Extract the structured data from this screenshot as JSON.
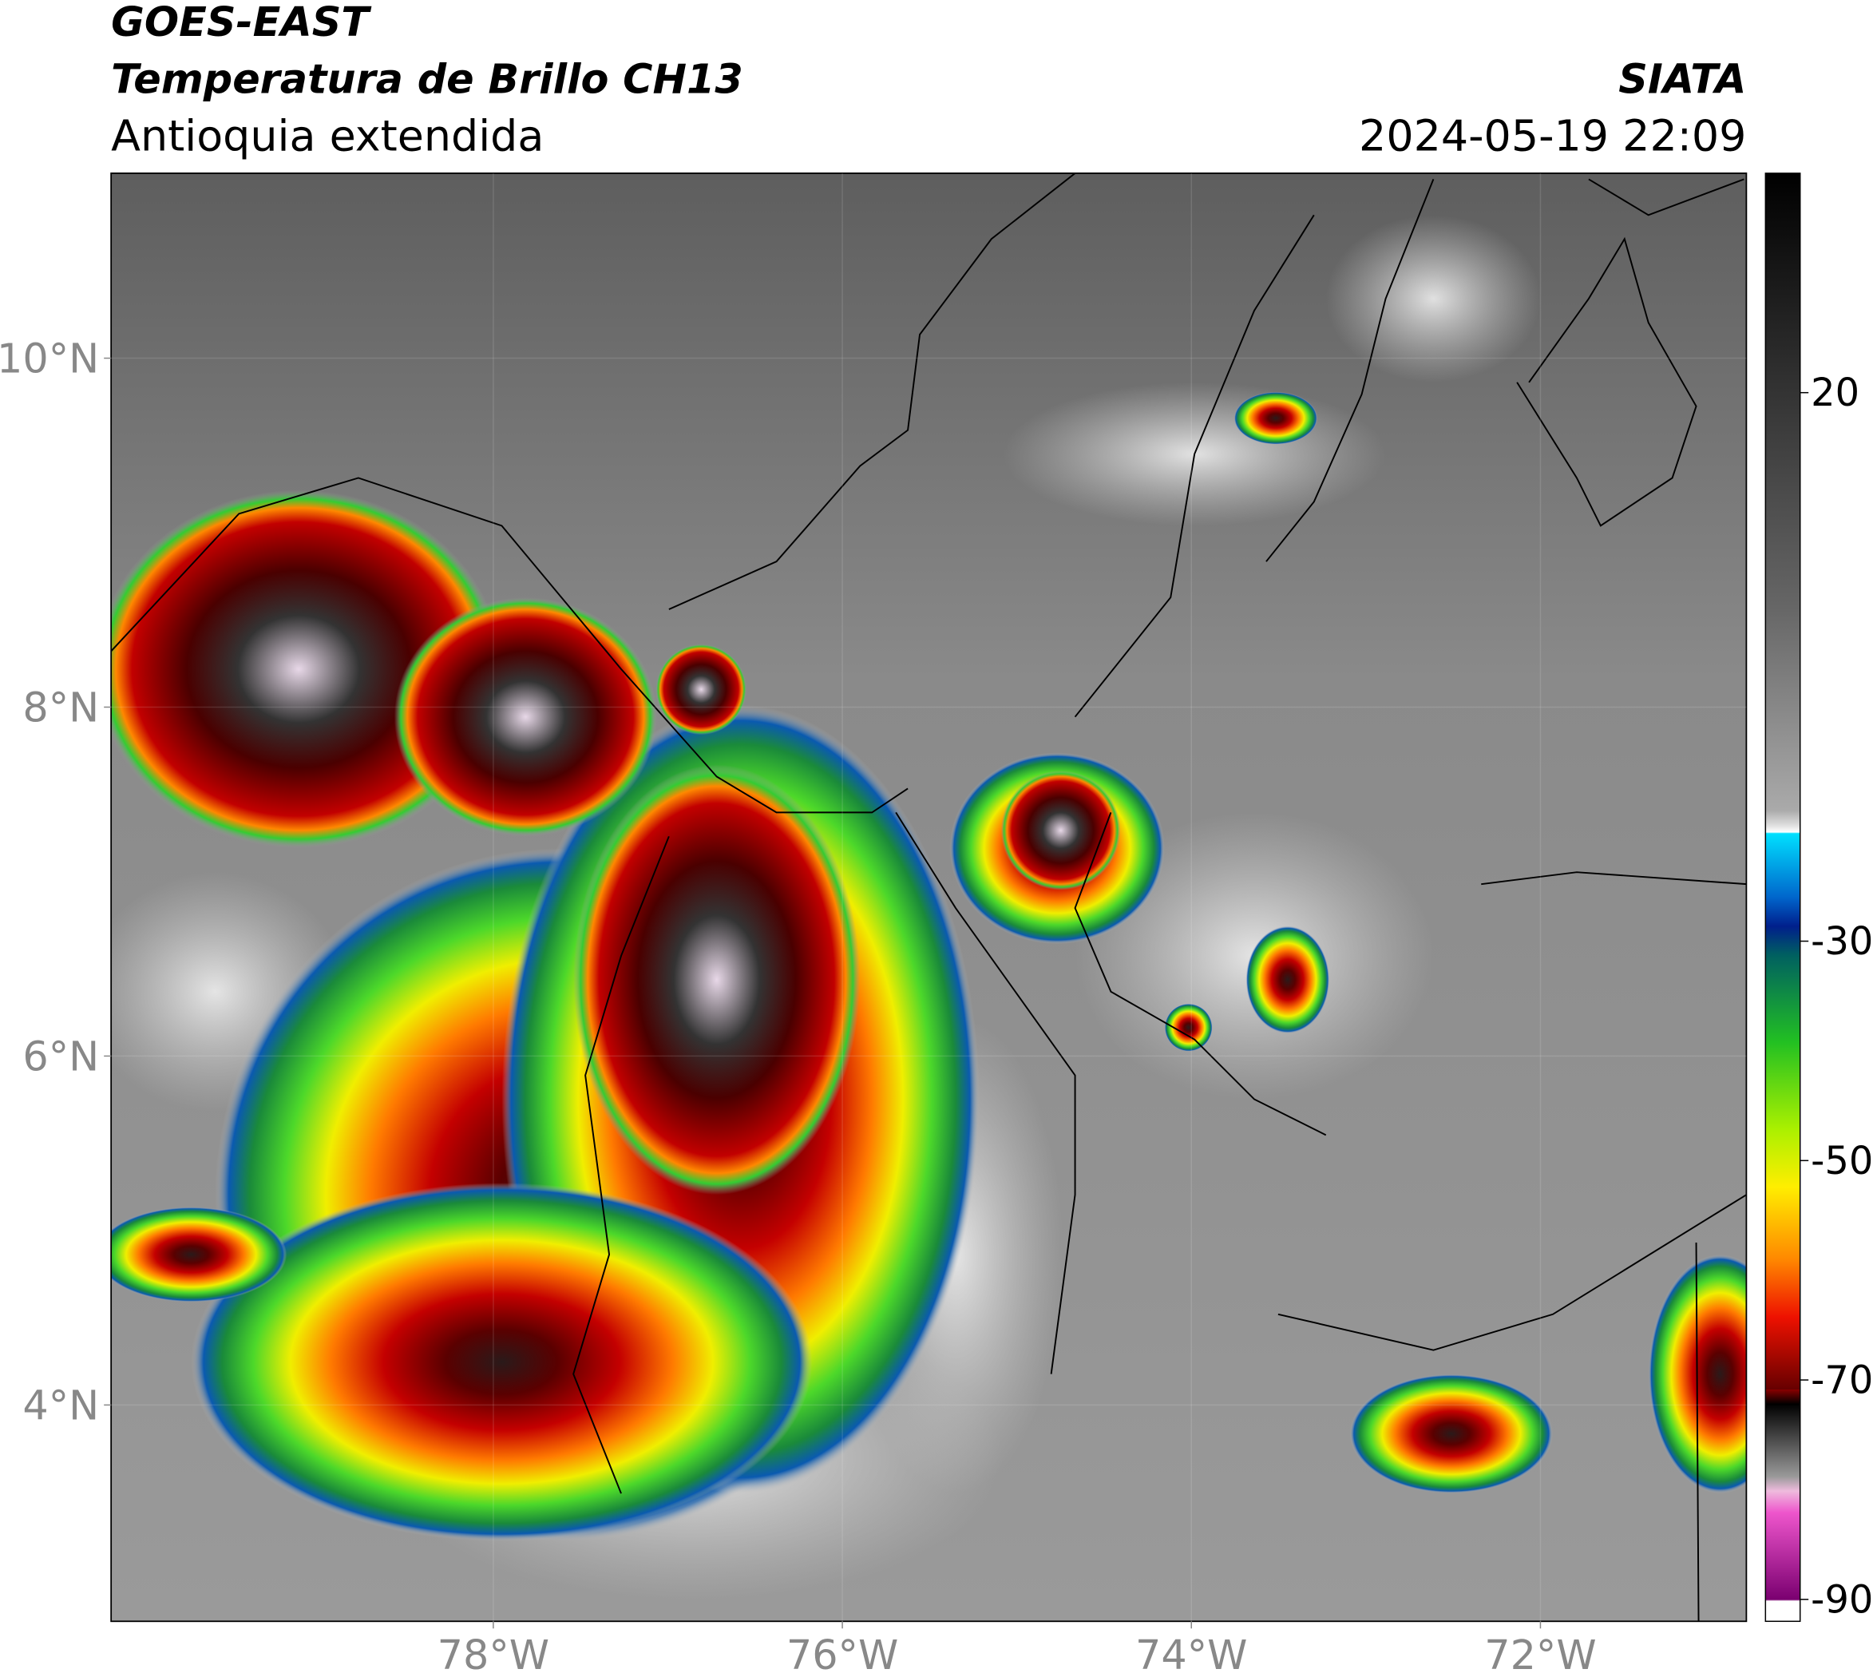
{
  "header": {
    "title": "GOES-EAST",
    "subtitle": "Temperatura de Brillo CH13",
    "region": "Antioquia extendida",
    "source": "SIATA",
    "datetime": "2024-05-19 22:09"
  },
  "map": {
    "xlim": [
      -80.19,
      -70.82
    ],
    "ylim": [
      2.76,
      11.06
    ],
    "xticks": [
      {
        "value": -78,
        "label": "78°W"
      },
      {
        "value": -76,
        "label": "76°W"
      },
      {
        "value": -74,
        "label": "74°W"
      },
      {
        "value": -72,
        "label": "72°W"
      }
    ],
    "yticks": [
      {
        "value": 4,
        "label": "4°N"
      },
      {
        "value": 6,
        "label": "6°N"
      },
      {
        "value": 8,
        "label": "8°N"
      },
      {
        "value": 10,
        "label": "10°N"
      }
    ]
  },
  "colorbar": {
    "lim": [
      -92,
      40
    ],
    "ticks": [
      20,
      -30,
      -50,
      -70,
      -90
    ]
  }
}
